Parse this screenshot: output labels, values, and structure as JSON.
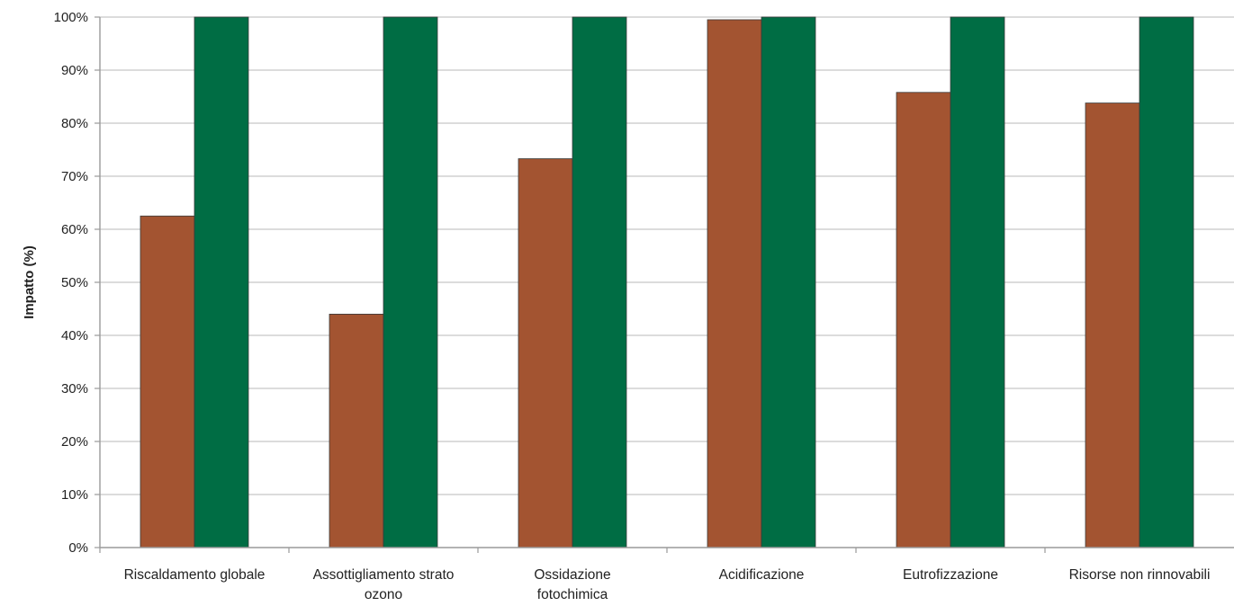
{
  "chart_data": {
    "type": "bar",
    "title": "",
    "xlabel": "",
    "ylabel": "Impatto (%)",
    "ylim": [
      0,
      100
    ],
    "yticks": [
      0,
      10,
      20,
      30,
      40,
      50,
      60,
      70,
      80,
      90,
      100
    ],
    "ytick_suffix": "%",
    "grid": true,
    "legend": "none",
    "categories": [
      [
        "Riscaldamento globale"
      ],
      [
        "Assottigliamento strato",
        "ozono"
      ],
      [
        "Ossidazione",
        "fotochimica"
      ],
      [
        "Acidificazione"
      ],
      [
        "Eutrofizzazione"
      ],
      [
        "Risorse non rinnovabili"
      ]
    ],
    "series": [
      {
        "color": "#a35431",
        "values": [
          62.5,
          44,
          73.3,
          99.5,
          85.8,
          83.8
        ]
      },
      {
        "color": "#006d44",
        "values": [
          100,
          100,
          100,
          100,
          100,
          100
        ]
      }
    ]
  }
}
